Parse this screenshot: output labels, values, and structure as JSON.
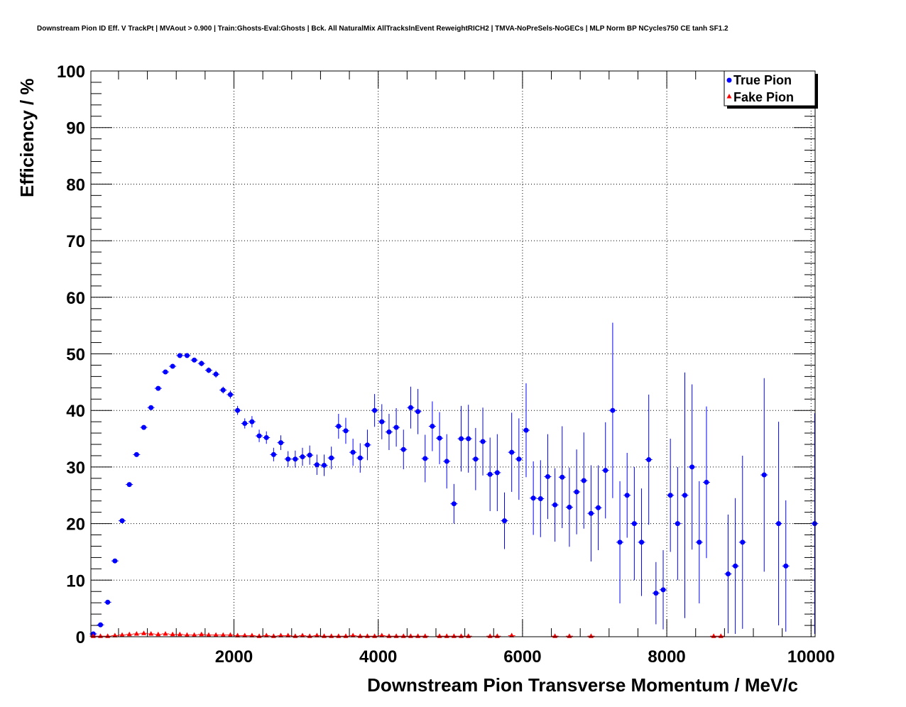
{
  "chart_data": {
    "type": "scatter",
    "title": "Downstream Pion ID Eff. V TrackPt | MVAout > 0.900 | Train:Ghosts-Eval:Ghosts | Bck. All NaturalMix AllTracksInEvent ReweightRICH2 | TMVA-NoPreSels-NoGECs | MLP Norm BP NCycles750 CE tanh SF1.2",
    "xlabel": "Downstream Pion Transverse Momentum / MeV/c",
    "ylabel": "Efficiency / %",
    "xlim": [
      0,
      10000
    ],
    "ylim": [
      0,
      100
    ],
    "x_ticks": [
      2000,
      4000,
      6000,
      8000,
      10000
    ],
    "x_tick_labels": [
      "2000",
      "4000",
      "6000",
      "8000",
      "10000"
    ],
    "y_ticks": [
      0,
      10,
      20,
      30,
      40,
      50,
      60,
      70,
      80,
      90,
      100
    ],
    "y_tick_labels": [
      "0",
      "10",
      "20",
      "30",
      "40",
      "50",
      "60",
      "70",
      "80",
      "90",
      "100"
    ],
    "grid": true,
    "legend_position": "top-right",
    "series": [
      {
        "name": "True Pion",
        "color": "#0000ff",
        "marker": "circle",
        "points": [
          [
            50,
            0.5,
            0.1
          ],
          [
            150,
            2.1,
            0.1
          ],
          [
            250,
            6.1,
            0.2
          ],
          [
            350,
            13.4,
            0.2
          ],
          [
            450,
            20.5,
            0.3
          ],
          [
            550,
            26.9,
            0.3
          ],
          [
            650,
            32.2,
            0.3
          ],
          [
            750,
            37.0,
            0.3
          ],
          [
            850,
            40.5,
            0.3
          ],
          [
            950,
            43.9,
            0.3
          ],
          [
            1050,
            46.8,
            0.3
          ],
          [
            1150,
            47.8,
            0.3
          ],
          [
            1250,
            49.7,
            0.4
          ],
          [
            1350,
            49.7,
            0.4
          ],
          [
            1450,
            48.9,
            0.4
          ],
          [
            1550,
            48.3,
            0.5
          ],
          [
            1650,
            47.1,
            0.5
          ],
          [
            1750,
            46.4,
            0.6
          ],
          [
            1850,
            43.6,
            0.6
          ],
          [
            1950,
            42.8,
            0.7
          ],
          [
            2050,
            40.0,
            0.8
          ],
          [
            2150,
            37.7,
            0.9
          ],
          [
            2250,
            38.0,
            1.0
          ],
          [
            2350,
            35.5,
            1.1
          ],
          [
            2450,
            35.2,
            1.1
          ],
          [
            2550,
            32.2,
            1.2
          ],
          [
            2650,
            34.3,
            1.3
          ],
          [
            2750,
            31.4,
            1.4
          ],
          [
            2850,
            31.4,
            1.5
          ],
          [
            2950,
            31.8,
            1.6
          ],
          [
            3050,
            32.1,
            1.7
          ],
          [
            3150,
            30.4,
            1.8
          ],
          [
            3250,
            30.3,
            1.9
          ],
          [
            3350,
            31.6,
            2.0
          ],
          [
            3450,
            37.2,
            2.2
          ],
          [
            3550,
            36.4,
            2.3
          ],
          [
            3650,
            32.6,
            2.4
          ],
          [
            3750,
            31.6,
            2.6
          ],
          [
            3850,
            33.9,
            2.7
          ],
          [
            3950,
            40.0,
            2.9
          ],
          [
            4050,
            38.0,
            3.1
          ],
          [
            4150,
            36.2,
            3.2
          ],
          [
            4250,
            37.0,
            3.4
          ],
          [
            4350,
            33.1,
            3.5
          ],
          [
            4450,
            40.5,
            3.7
          ],
          [
            4550,
            39.8,
            4.0
          ],
          [
            4650,
            31.5,
            4.2
          ],
          [
            4750,
            37.2,
            4.4
          ],
          [
            4850,
            35.1,
            4.6
          ],
          [
            4950,
            31.0,
            4.8
          ],
          [
            5050,
            23.5,
            3.5
          ],
          [
            5150,
            35.0,
            5.8
          ],
          [
            5250,
            35.0,
            6.0
          ],
          [
            5350,
            31.4,
            5.5
          ],
          [
            5450,
            34.5,
            6.0
          ],
          [
            5550,
            28.7,
            6.5
          ],
          [
            5650,
            29.0,
            6.8
          ],
          [
            5750,
            20.5,
            5.0
          ],
          [
            5850,
            32.6,
            7.0
          ],
          [
            5950,
            31.4,
            7.2
          ],
          [
            6050,
            36.5,
            8.3
          ],
          [
            6150,
            24.5,
            6.5
          ],
          [
            6250,
            24.4,
            6.8
          ],
          [
            6350,
            28.3,
            7.5
          ],
          [
            6450,
            23.3,
            6.5
          ],
          [
            6550,
            28.2,
            9.0
          ],
          [
            6650,
            22.9,
            7.0
          ],
          [
            6750,
            25.6,
            7.5
          ],
          [
            6850,
            27.6,
            8.5
          ],
          [
            6950,
            21.8,
            8.5
          ],
          [
            7050,
            22.8,
            7.5
          ],
          [
            7150,
            29.4,
            8.5
          ],
          [
            7250,
            40.0,
            15.5
          ],
          [
            7350,
            16.7,
            10.8
          ],
          [
            7450,
            25.0,
            7.5
          ],
          [
            7550,
            20.0,
            10.0
          ],
          [
            7650,
            16.7,
            9.5
          ],
          [
            7750,
            31.3,
            11.5
          ],
          [
            7850,
            7.7,
            5.5
          ],
          [
            7950,
            8.3,
            7.0
          ],
          [
            8050,
            25.0,
            10.0
          ],
          [
            8150,
            20.0,
            10.0
          ],
          [
            8250,
            25.0,
            21.7
          ],
          [
            8350,
            30.0,
            14.6
          ],
          [
            8450,
            16.7,
            10.8
          ],
          [
            8550,
            27.3,
            13.4
          ],
          [
            8850,
            11.1,
            10.5
          ],
          [
            8950,
            12.5,
            12.0
          ],
          [
            9050,
            16.7,
            15.3
          ],
          [
            9350,
            28.6,
            17.1
          ],
          [
            9550,
            20.0,
            18.0
          ],
          [
            9650,
            12.5,
            11.6
          ],
          [
            10050,
            20.0,
            19.5
          ]
        ]
      },
      {
        "name": "Fake Pion",
        "color": "#ff0000",
        "marker": "triangle",
        "points": [
          [
            50,
            0.1
          ],
          [
            150,
            0.1
          ],
          [
            250,
            0.1
          ],
          [
            350,
            0.2
          ],
          [
            450,
            0.3
          ],
          [
            550,
            0.4
          ],
          [
            650,
            0.5
          ],
          [
            750,
            0.6
          ],
          [
            850,
            0.5
          ],
          [
            950,
            0.4
          ],
          [
            1050,
            0.5
          ],
          [
            1150,
            0.4
          ],
          [
            1250,
            0.4
          ],
          [
            1350,
            0.3
          ],
          [
            1450,
            0.3
          ],
          [
            1550,
            0.4
          ],
          [
            1650,
            0.3
          ],
          [
            1750,
            0.3
          ],
          [
            1850,
            0.3
          ],
          [
            1950,
            0.3
          ],
          [
            2050,
            0.2
          ],
          [
            2150,
            0.2
          ],
          [
            2250,
            0.2
          ],
          [
            2350,
            0.1
          ],
          [
            2450,
            0.2
          ],
          [
            2550,
            0.1
          ],
          [
            2650,
            0.2
          ],
          [
            2750,
            0.2
          ],
          [
            2850,
            0.1
          ],
          [
            2950,
            0.2
          ],
          [
            3050,
            0.1
          ],
          [
            3150,
            0.2
          ],
          [
            3250,
            0.1
          ],
          [
            3350,
            0.1
          ],
          [
            3450,
            0.1
          ],
          [
            3550,
            0.1
          ],
          [
            3650,
            0.2
          ],
          [
            3750,
            0.1
          ],
          [
            3850,
            0.1
          ],
          [
            3950,
            0.1
          ],
          [
            4050,
            0.2
          ],
          [
            4150,
            0.1
          ],
          [
            4250,
            0.1
          ],
          [
            4350,
            0.1
          ],
          [
            4450,
            0.1
          ],
          [
            4550,
            0.1
          ],
          [
            4650,
            0.1
          ],
          [
            4850,
            0.1
          ],
          [
            4950,
            0.1
          ],
          [
            5050,
            0.1
          ],
          [
            5150,
            0.1
          ],
          [
            5250,
            0.1
          ],
          [
            5550,
            0.1
          ],
          [
            5650,
            0.1
          ],
          [
            5850,
            0.2
          ],
          [
            6450,
            0.1
          ],
          [
            6650,
            0.1
          ],
          [
            6950,
            0.1
          ],
          [
            8650,
            0.1
          ],
          [
            8750,
            0.1
          ]
        ]
      }
    ]
  }
}
